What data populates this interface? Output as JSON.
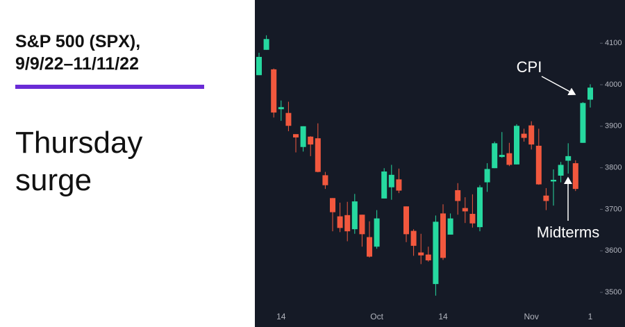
{
  "chart_data": {
    "type": "candlestick",
    "title": [
      "S&P 500 (SPX),",
      "9/9/22–11/11/22"
    ],
    "subtitle": [
      "Thursday",
      "surge"
    ],
    "categories": [
      null,
      null,
      null,
      "14",
      null,
      null,
      null,
      null,
      null,
      null,
      null,
      null,
      null,
      null,
      null,
      null,
      "Oct",
      null,
      null,
      null,
      null,
      null,
      null,
      null,
      null,
      "14",
      null,
      null,
      null,
      null,
      null,
      null,
      null,
      null,
      null,
      null,
      null,
      "Nov",
      null,
      null,
      null,
      null,
      null,
      null,
      null,
      "1"
    ],
    "open": [
      4023,
      4084,
      4037,
      3941,
      3932,
      3881,
      3850,
      3875,
      3871,
      3782,
      3727,
      3683,
      3686,
      3652,
      3687,
      3633,
      3610,
      3726,
      3753,
      3772,
      3707,
      3648,
      3596,
      3591,
      3520,
      3690,
      3639,
      3746,
      3703,
      3689,
      3657,
      3765,
      3799,
      3826,
      3835,
      3808,
      3882,
      3902,
      3853,
      3733,
      3767,
      3781,
      3817,
      3811,
      3860,
      3964
    ],
    "high": [
      4077,
      4119,
      4039,
      3962,
      3959,
      3881,
      3900,
      3876,
      3907,
      3790,
      3727,
      3716,
      3718,
      3737,
      3687,
      3671,
      3698,
      3799,
      3807,
      3798,
      3707,
      3652,
      3641,
      3610,
      3685,
      3712,
      3690,
      3763,
      3729,
      3736,
      3758,
      3811,
      3863,
      3886,
      3860,
      3905,
      3894,
      3912,
      3894,
      3751,
      3796,
      3814,
      3859,
      3818,
      3958,
      4001
    ],
    "low": [
      4023,
      4084,
      3921,
      3913,
      3888,
      3837,
      3839,
      3828,
      3789,
      3749,
      3647,
      3645,
      3623,
      3641,
      3610,
      3584,
      3605,
      3726,
      3723,
      3739,
      3621,
      3588,
      3568,
      3574,
      3492,
      3578,
      3639,
      3687,
      3667,
      3656,
      3647,
      3742,
      3799,
      3824,
      3804,
      3808,
      3863,
      3844,
      3759,
      3698,
      3709,
      3765,
      3786,
      3744,
      3860,
      3945
    ],
    "close": [
      4067,
      4110,
      3933,
      3946,
      3901,
      3873,
      3900,
      3856,
      3790,
      3758,
      3693,
      3655,
      3647,
      3719,
      3640,
      3586,
      3678,
      3791,
      3783,
      3745,
      3640,
      3612,
      3589,
      3577,
      3670,
      3583,
      3678,
      3720,
      3695,
      3666,
      3753,
      3797,
      3859,
      3831,
      3807,
      3901,
      3872,
      3856,
      3760,
      3720,
      3771,
      3807,
      3828,
      3749,
      3956,
      3993
    ],
    "up_color": "#26d9a0",
    "down_color": "#f2583e",
    "ylim": [
      3460,
      4204
    ],
    "yticks": [
      3500,
      3600,
      3700,
      3800,
      3900,
      4000,
      4100
    ],
    "annotations": [
      "CPI",
      "Midterms"
    ]
  }
}
